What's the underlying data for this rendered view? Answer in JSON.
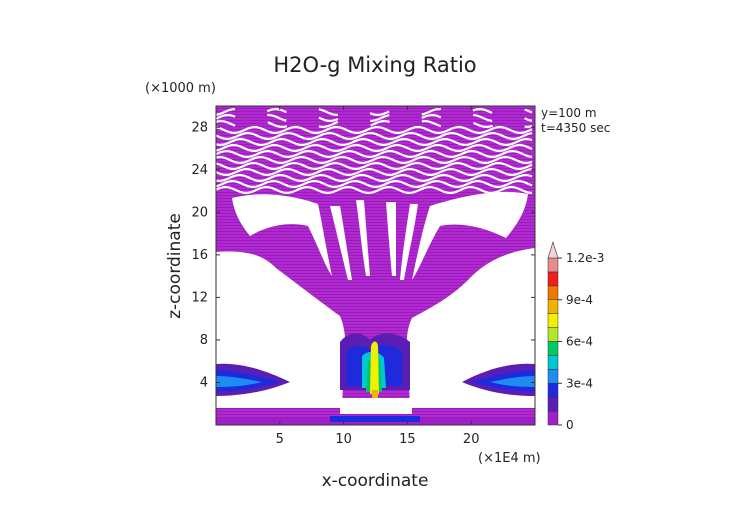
{
  "chart_data": {
    "type": "heatmap",
    "title": "H2O-g Mixing Ratio",
    "xlabel": "x-coordinate",
    "ylabel": "z-coordinate",
    "x_unit": "(×1E4 m)",
    "y_unit": "(×1000 m)",
    "info": [
      "y=100  m",
      "t=4350  sec"
    ],
    "xlim": [
      0,
      25
    ],
    "ylim": [
      0,
      30
    ],
    "x_ticks": [
      5,
      10,
      15,
      20
    ],
    "y_ticks": [
      4,
      8,
      12,
      16,
      20,
      24,
      28
    ],
    "colorbar": {
      "levels": [
        0,
        0.0001,
        0.0002,
        0.0003,
        0.0004,
        0.0005,
        0.0006,
        0.0007,
        0.0008,
        0.0009,
        0.001,
        0.0011,
        0.0012
      ],
      "tick_values": [
        0,
        0.0003,
        0.0006,
        0.0009,
        0.0012
      ],
      "tick_labels": [
        "0",
        "3e-4",
        "6e-4",
        "9e-4",
        "1.2e-3"
      ],
      "colors": [
        "#a020c8",
        "#5a1eb4",
        "#1e2adc",
        "#1e8cf0",
        "#00c8d2",
        "#00c864",
        "#b4e628",
        "#f0f000",
        "#f0b400",
        "#f07800",
        "#f01e1e",
        "#e68c8c",
        "#f5d2d2"
      ]
    }
  }
}
